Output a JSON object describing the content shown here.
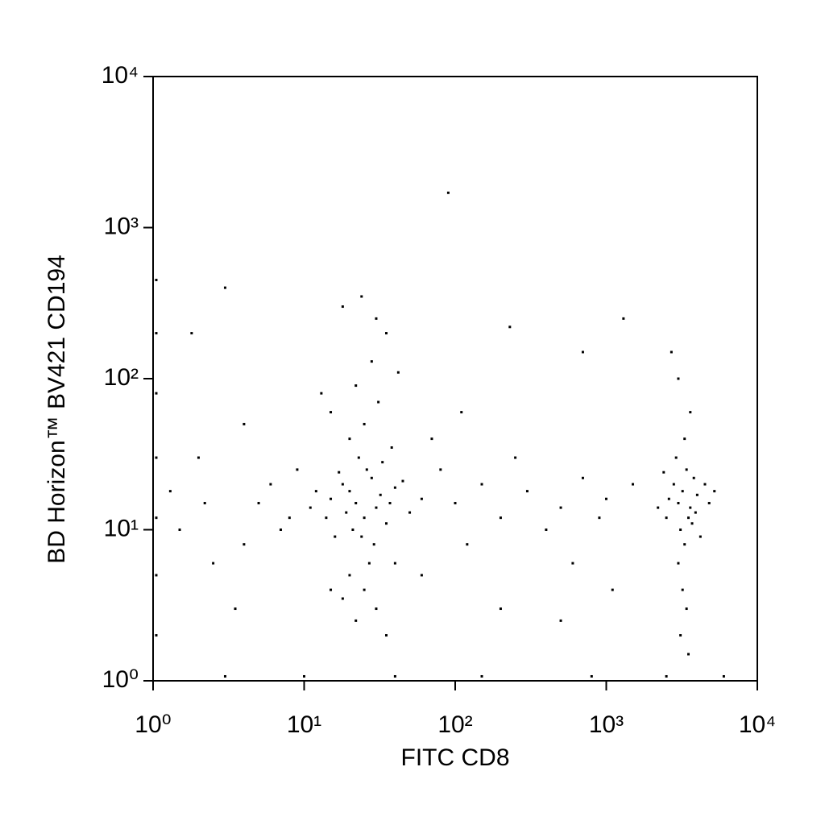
{
  "chart_data": {
    "type": "scatter",
    "x_label": "FITC CD8",
    "y_label": "BD Horizon™ BV421 CD194",
    "xscale": "log",
    "yscale": "log",
    "color": "#000000",
    "xlim": [
      1,
      10000
    ],
    "ylim": [
      1,
      10000
    ],
    "xticks": [
      {
        "value": 1,
        "label": "10⁰"
      },
      {
        "value": 10,
        "label": "10¹"
      },
      {
        "value": 100,
        "label": "10²"
      },
      {
        "value": 1000,
        "label": "10³"
      },
      {
        "value": 10000,
        "label": "10⁴"
      }
    ],
    "yticks": [
      {
        "value": 1,
        "label": "10⁰"
      },
      {
        "value": 10,
        "label": "10¹"
      },
      {
        "value": 100,
        "label": "10²"
      },
      {
        "value": 1000,
        "label": "10³"
      },
      {
        "value": 10000,
        "label": "10⁴"
      }
    ],
    "x": [
      20,
      22,
      25,
      18,
      30,
      28,
      15,
      35,
      24,
      19,
      26,
      32,
      21,
      17,
      40,
      14,
      23,
      29,
      37,
      12,
      45,
      27,
      33,
      16,
      38,
      20,
      25,
      31,
      22,
      28,
      35,
      18,
      30,
      24,
      15,
      42,
      13,
      11,
      50,
      60,
      8,
      6,
      9,
      7,
      5,
      4,
      20,
      25,
      30,
      22,
      35,
      18,
      40,
      15,
      3000,
      3200,
      3500,
      2800,
      3400,
      3100,
      3600,
      2600,
      3800,
      3300,
      2900,
      3700,
      3000,
      3200,
      3400,
      3100,
      3500,
      2500,
      4000,
      4500,
      2200,
      3300,
      3600,
      3000,
      2700,
      4200,
      3900,
      2400,
      4800,
      5200,
      100,
      150,
      200,
      300,
      500,
      700,
      1000,
      80,
      120,
      250,
      400,
      600,
      900,
      1500,
      70,
      110,
      90,
      230,
      700,
      1300,
      60,
      200,
      500,
      1100,
      1.05,
      1.05,
      1.05,
      1.05,
      1.05,
      1.05,
      1.05,
      3,
      10,
      40,
      150,
      800,
      2500,
      6000,
      1.5,
      2,
      2.5,
      3,
      1.8,
      2.2,
      3.5,
      4,
      1.3
    ],
    "y": [
      18,
      15,
      12,
      20,
      14,
      22,
      16,
      11,
      9,
      13,
      25,
      17,
      10,
      24,
      19,
      12,
      30,
      8,
      15,
      18,
      21,
      6,
      28,
      9,
      35,
      40,
      50,
      70,
      90,
      130,
      200,
      300,
      250,
      350,
      60,
      110,
      80,
      14,
      13,
      16,
      12,
      20,
      25,
      10,
      15,
      8,
      5,
      4,
      3,
      2.5,
      2,
      3.5,
      6,
      4,
      15,
      18,
      12,
      20,
      25,
      10,
      14,
      16,
      22,
      8,
      30,
      11,
      6,
      4,
      3,
      2,
      1.5,
      12,
      17,
      20,
      14,
      40,
      60,
      100,
      150,
      9,
      13,
      24,
      15,
      18,
      15,
      20,
      12,
      18,
      14,
      22,
      16,
      25,
      8,
      30,
      10,
      6,
      12,
      20,
      40,
      60,
      1700,
      220,
      150,
      250,
      5,
      3,
      2.5,
      4,
      2,
      5,
      12,
      30,
      80,
      200,
      450,
      1.07,
      1.07,
      1.07,
      1.07,
      1.07,
      1.07,
      1.07,
      10,
      30,
      6,
      400,
      200,
      15,
      3,
      50,
      18
    ]
  }
}
